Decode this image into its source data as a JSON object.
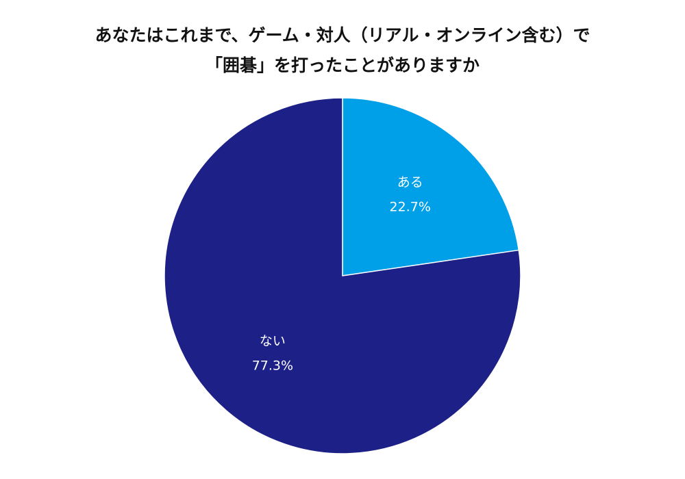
{
  "chart_data": {
    "type": "pie",
    "title_lines": [
      "あなたはこれまで、ゲーム・対人（リアル・オンライン含む）で",
      "「囲碁」を打ったことがありますか"
    ],
    "slices": [
      {
        "label": "ある",
        "value": 22.7,
        "value_label": "22.7%",
        "color": "#00a0e9"
      },
      {
        "label": "ない",
        "value": 77.3,
        "value_label": "77.3%",
        "color": "#1d2087"
      }
    ],
    "start": "12 o'clock",
    "direction": "clockwise"
  }
}
